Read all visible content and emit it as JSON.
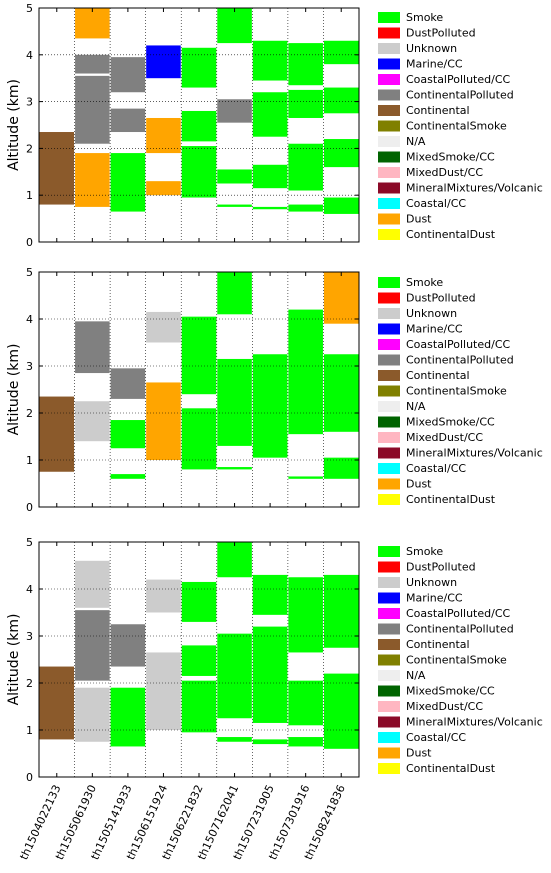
{
  "figure": {
    "ylabel": "Altitude (km)"
  },
  "chart_data": [
    {
      "type": "bar",
      "title": "",
      "xlabel": "",
      "ylabel": "Altitude (km)",
      "ylim": [
        0,
        5
      ],
      "yticks": [
        "0",
        "1",
        "2",
        "3",
        "4",
        "5"
      ],
      "categories": [
        "th1504022133",
        "th1505061930",
        "th1505141933",
        "th1506151924",
        "th1506221832",
        "th1507162041",
        "th1507231905",
        "th1507301916",
        "th1508241836"
      ],
      "grid": true,
      "legend_position": "right",
      "legend": [
        "Smoke",
        "DustPolluted",
        "Unknown",
        "Marine/CC",
        "CoastalPolluted/CC",
        "ContinentalPolluted",
        "Continental",
        "ContinentalSmoke",
        "N/A",
        "MixedSmoke/CC",
        "MixedDust/CC",
        "MineralMixtures/Volcanic",
        "Coastal/CC",
        "Dust",
        "ContinentalDust"
      ],
      "columns": [
        [
          {
            "bottom": 0.8,
            "top": 2.35,
            "type": "Continental"
          }
        ],
        [
          {
            "bottom": 0.75,
            "top": 1.9,
            "type": "Dust"
          },
          {
            "bottom": 2.1,
            "top": 3.55,
            "type": "ContinentalPolluted"
          },
          {
            "bottom": 3.6,
            "top": 4.0,
            "type": "ContinentalPolluted"
          },
          {
            "bottom": 4.35,
            "top": 5.0,
            "type": "Dust"
          }
        ],
        [
          {
            "bottom": 0.65,
            "top": 1.9,
            "type": "Smoke"
          },
          {
            "bottom": 2.35,
            "top": 2.85,
            "type": "ContinentalPolluted"
          },
          {
            "bottom": 3.2,
            "top": 3.95,
            "type": "ContinentalPolluted"
          }
        ],
        [
          {
            "bottom": 1.0,
            "top": 1.3,
            "type": "Dust"
          },
          {
            "bottom": 1.9,
            "top": 2.65,
            "type": "Dust"
          },
          {
            "bottom": 3.5,
            "top": 4.2,
            "type": "Marine/CC"
          }
        ],
        [
          {
            "bottom": 0.95,
            "top": 2.05,
            "type": "Smoke"
          },
          {
            "bottom": 2.15,
            "top": 2.8,
            "type": "Smoke"
          },
          {
            "bottom": 3.3,
            "top": 4.15,
            "type": "Smoke"
          }
        ],
        [
          {
            "bottom": 0.75,
            "top": 0.8,
            "type": "Smoke"
          },
          {
            "bottom": 1.25,
            "top": 1.55,
            "type": "Smoke"
          },
          {
            "bottom": 2.55,
            "top": 3.05,
            "type": "ContinentalPolluted"
          },
          {
            "bottom": 4.25,
            "top": 5.0,
            "type": "Smoke"
          }
        ],
        [
          {
            "bottom": 0.7,
            "top": 0.75,
            "type": "Smoke"
          },
          {
            "bottom": 1.15,
            "top": 1.65,
            "type": "Smoke"
          },
          {
            "bottom": 2.25,
            "top": 3.2,
            "type": "Smoke"
          },
          {
            "bottom": 3.45,
            "top": 4.3,
            "type": "Smoke"
          }
        ],
        [
          {
            "bottom": 0.65,
            "top": 0.8,
            "type": "Smoke"
          },
          {
            "bottom": 1.1,
            "top": 2.1,
            "type": "Smoke"
          },
          {
            "bottom": 2.65,
            "top": 3.25,
            "type": "Smoke"
          },
          {
            "bottom": 3.35,
            "top": 4.25,
            "type": "Smoke"
          }
        ],
        [
          {
            "bottom": 0.6,
            "top": 0.95,
            "type": "Smoke"
          },
          {
            "bottom": 1.6,
            "top": 2.2,
            "type": "Smoke"
          },
          {
            "bottom": 2.75,
            "top": 3.3,
            "type": "Smoke"
          },
          {
            "bottom": 3.8,
            "top": 4.3,
            "type": "Smoke"
          }
        ]
      ]
    },
    {
      "type": "bar",
      "title": "",
      "xlabel": "",
      "ylabel": "Altitude (km)",
      "ylim": [
        0,
        5
      ],
      "yticks": [
        "0",
        "1",
        "2",
        "3",
        "4",
        "5"
      ],
      "categories": [
        "th1504022133",
        "th1505061930",
        "th1505141933",
        "th1506151924",
        "th1506221832",
        "th1507162041",
        "th1507231905",
        "th1507301916",
        "th1508241836"
      ],
      "grid": true,
      "legend_position": "right",
      "legend": [
        "Smoke",
        "DustPolluted",
        "Unknown",
        "Marine/CC",
        "CoastalPolluted/CC",
        "ContinentalPolluted",
        "Continental",
        "ContinentalSmoke",
        "N/A",
        "MixedSmoke/CC",
        "MixedDust/CC",
        "MineralMixtures/Volcanic",
        "Coastal/CC",
        "Dust",
        "ContinentalDust"
      ],
      "columns": [
        [
          {
            "bottom": 0.75,
            "top": 2.35,
            "type": "Continental"
          }
        ],
        [
          {
            "bottom": 1.4,
            "top": 2.25,
            "type": "Unknown"
          },
          {
            "bottom": 2.85,
            "top": 3.95,
            "type": "ContinentalPolluted"
          }
        ],
        [
          {
            "bottom": 0.6,
            "top": 0.7,
            "type": "Smoke"
          },
          {
            "bottom": 1.25,
            "top": 1.85,
            "type": "Smoke"
          },
          {
            "bottom": 2.3,
            "top": 2.95,
            "type": "ContinentalPolluted"
          }
        ],
        [
          {
            "bottom": 1.0,
            "top": 2.65,
            "type": "Dust"
          },
          {
            "bottom": 3.5,
            "top": 4.15,
            "type": "Unknown"
          }
        ],
        [
          {
            "bottom": 0.8,
            "top": 2.1,
            "type": "Smoke"
          },
          {
            "bottom": 2.4,
            "top": 4.05,
            "type": "Smoke"
          }
        ],
        [
          {
            "bottom": 0.8,
            "top": 0.85,
            "type": "Smoke"
          },
          {
            "bottom": 1.3,
            "top": 3.15,
            "type": "Smoke"
          },
          {
            "bottom": 4.1,
            "top": 5.0,
            "type": "Smoke"
          }
        ],
        [
          {
            "bottom": 1.05,
            "top": 3.25,
            "type": "Smoke"
          }
        ],
        [
          {
            "bottom": 0.6,
            "top": 0.65,
            "type": "Smoke"
          },
          {
            "bottom": 1.55,
            "top": 4.2,
            "type": "Smoke"
          }
        ],
        [
          {
            "bottom": 0.6,
            "top": 1.05,
            "type": "Smoke"
          },
          {
            "bottom": 1.6,
            "top": 3.25,
            "type": "Smoke"
          },
          {
            "bottom": 3.9,
            "top": 5.0,
            "type": "Dust"
          }
        ]
      ]
    },
    {
      "type": "bar",
      "title": "",
      "xlabel": "",
      "ylabel": "Altitude (km)",
      "ylim": [
        0,
        5
      ],
      "yticks": [
        "0",
        "1",
        "2",
        "3",
        "4",
        "5"
      ],
      "categories": [
        "th1504022133",
        "th1505061930",
        "th1505141933",
        "th1506151924",
        "th1506221832",
        "th1507162041",
        "th1507231905",
        "th1507301916",
        "th1508241836"
      ],
      "grid": true,
      "legend_position": "right",
      "legend": [
        "Smoke",
        "DustPolluted",
        "Unknown",
        "Marine/CC",
        "CoastalPolluted/CC",
        "ContinentalPolluted",
        "Continental",
        "ContinentalSmoke",
        "N/A",
        "MixedSmoke/CC",
        "MixedDust/CC",
        "MineralMixtures/Volcanic",
        "Coastal/CC",
        "Dust",
        "ContinentalDust"
      ],
      "columns": [
        [
          {
            "bottom": 0.8,
            "top": 2.35,
            "type": "Continental"
          }
        ],
        [
          {
            "bottom": 0.75,
            "top": 1.9,
            "type": "Unknown"
          },
          {
            "bottom": 2.05,
            "top": 3.55,
            "type": "ContinentalPolluted"
          },
          {
            "bottom": 3.6,
            "top": 4.6,
            "type": "Unknown"
          }
        ],
        [
          {
            "bottom": 0.65,
            "top": 1.9,
            "type": "Smoke"
          },
          {
            "bottom": 2.35,
            "top": 3.25,
            "type": "ContinentalPolluted"
          }
        ],
        [
          {
            "bottom": 1.0,
            "top": 2.65,
            "type": "Unknown"
          },
          {
            "bottom": 3.5,
            "top": 4.2,
            "type": "Unknown"
          }
        ],
        [
          {
            "bottom": 0.95,
            "top": 2.05,
            "type": "Smoke"
          },
          {
            "bottom": 2.15,
            "top": 2.8,
            "type": "Smoke"
          },
          {
            "bottom": 3.3,
            "top": 4.15,
            "type": "Smoke"
          }
        ],
        [
          {
            "bottom": 0.75,
            "top": 0.85,
            "type": "Smoke"
          },
          {
            "bottom": 1.25,
            "top": 3.05,
            "type": "Smoke"
          },
          {
            "bottom": 4.25,
            "top": 5.0,
            "type": "Smoke"
          }
        ],
        [
          {
            "bottom": 0.7,
            "top": 0.8,
            "type": "Smoke"
          },
          {
            "bottom": 1.15,
            "top": 3.2,
            "type": "Smoke"
          },
          {
            "bottom": 3.45,
            "top": 4.3,
            "type": "Smoke"
          }
        ],
        [
          {
            "bottom": 0.65,
            "top": 0.85,
            "type": "Smoke"
          },
          {
            "bottom": 1.1,
            "top": 2.05,
            "type": "Smoke"
          },
          {
            "bottom": 2.65,
            "top": 4.25,
            "type": "Smoke"
          }
        ],
        [
          {
            "bottom": 0.6,
            "top": 2.2,
            "type": "Smoke"
          },
          {
            "bottom": 2.75,
            "top": 4.3,
            "type": "Smoke"
          }
        ]
      ]
    }
  ],
  "colors": {
    "Smoke": "#00ff00",
    "DustPolluted": "#ff0000",
    "Unknown": "#cccccc",
    "Marine/CC": "#0000ff",
    "CoastalPolluted/CC": "#ff00ff",
    "ContinentalPolluted": "#808080",
    "Continental": "#8b5a2b",
    "ContinentalSmoke": "#808000",
    "N/A": "#eeeeee",
    "MixedSmoke/CC": "#006400",
    "MixedDust/CC": "#ffb6c1",
    "MineralMixtures/Volcanic": "#8b0a28",
    "Coastal/CC": "#00ffff",
    "Dust": "#ffa500",
    "ContinentalDust": "#ffff00"
  }
}
